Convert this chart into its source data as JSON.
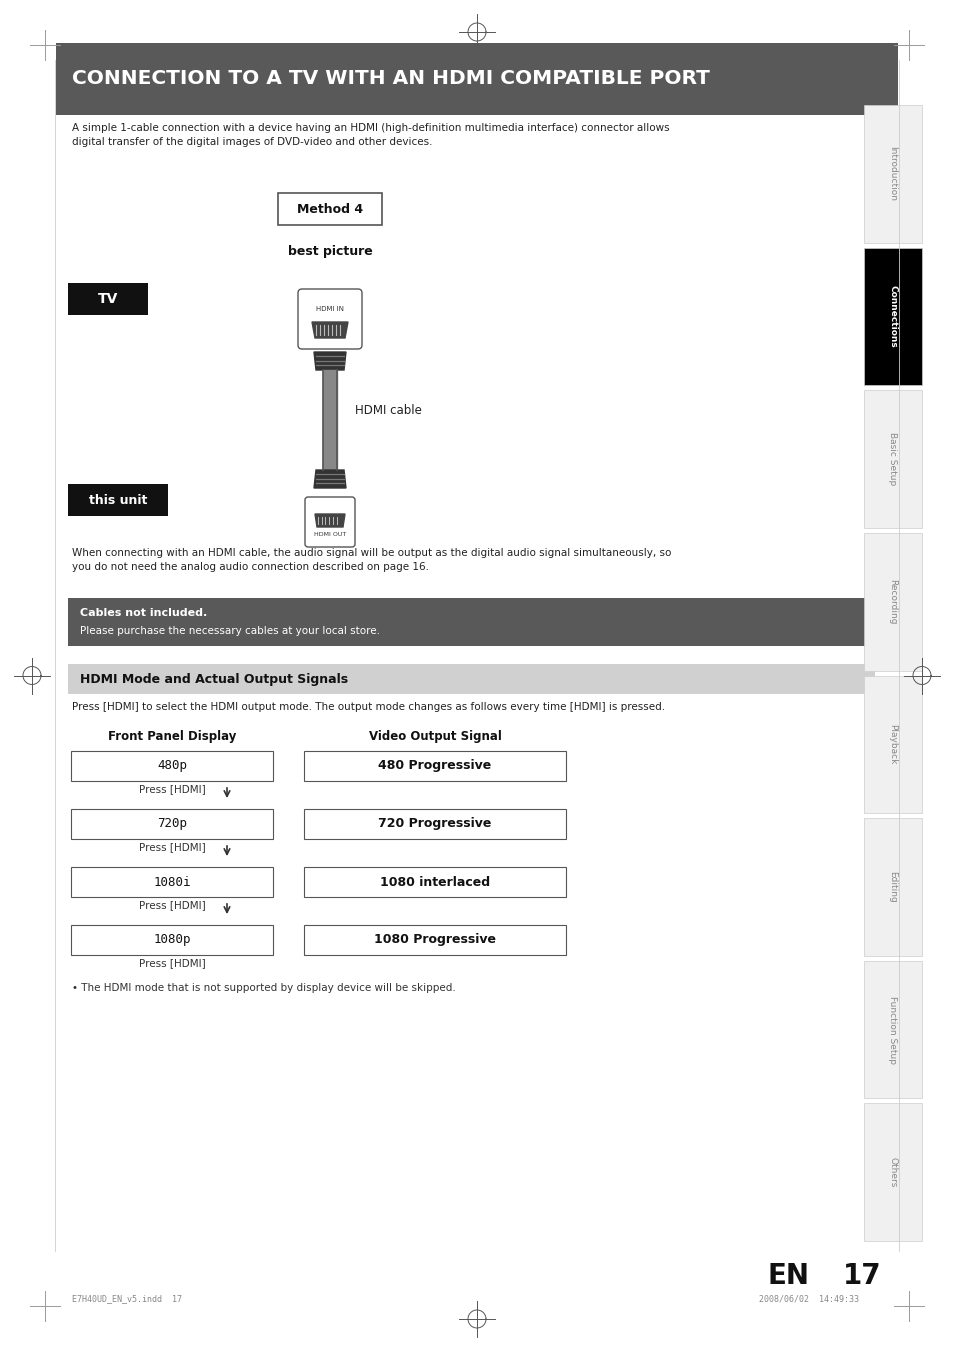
{
  "bg_color": "#ffffff",
  "page_width": 9.54,
  "page_height": 13.51,
  "title_text": "CONNECTION TO A TV WITH AN HDMI COMPATIBLE PORT",
  "title_bg": "#595959",
  "title_color": "#ffffff",
  "intro_text": "A simple 1-cable connection with a device having an HDMI (high-definition multimedia interface) connector allows\ndigital transfer of the digital images of DVD-video and other devices.",
  "method_label": "Method 4",
  "best_picture_label": "best picture",
  "tv_label": "TV",
  "this_unit_label": "this unit",
  "hdmi_cable_label": "HDMI cable",
  "warning_title": "Cables not included.",
  "warning_text": "Please purchase the necessary cables at your local store.",
  "warning_bg": "#595959",
  "section_title": "HDMI Mode and Actual Output Signals",
  "section_bg": "#d0d0d0",
  "section_desc": "Press [HDMI] to select the HDMI output mode. The output mode changes as follows every time [HDMI] is pressed.",
  "table_headers": [
    "Front Panel Display",
    "Video Output Signal"
  ],
  "table_rows": [
    [
      "480p",
      "480 Progressive"
    ],
    [
      "720p",
      "720 Progressive"
    ],
    [
      "1080i",
      "1080 interlaced"
    ],
    [
      "1080p",
      "1080 Progressive"
    ]
  ],
  "note_text": "• The HDMI mode that is not supported by display device will be skipped.",
  "sidebar_labels": [
    "Introduction",
    "Connections",
    "Basic Setup",
    "Recording",
    "Playback",
    "Editing",
    "Function Setup",
    "Others"
  ],
  "sidebar_active": "Connections",
  "sidebar_active_bg": "#000000",
  "sidebar_active_color": "#ffffff",
  "sidebar_inactive_color": "#888888",
  "page_num": "17",
  "page_en": "EN",
  "footer_left": "E7H40UD_EN_v5.indd  17",
  "footer_right": "2008/06/02  14:49:33",
  "margin_line_color": "#cccccc"
}
